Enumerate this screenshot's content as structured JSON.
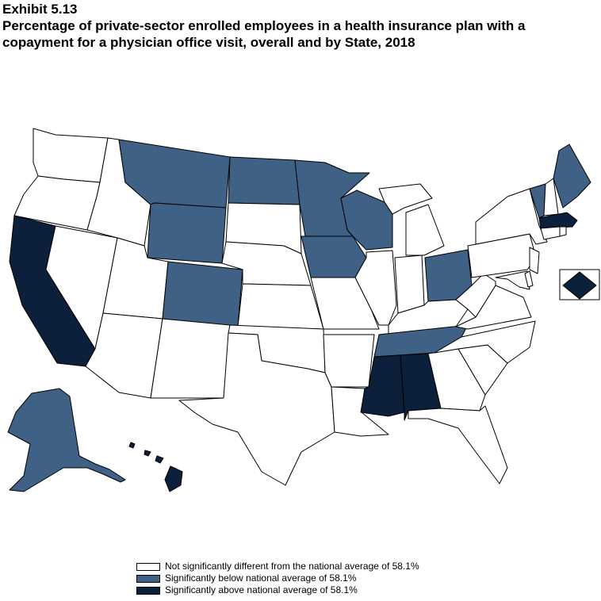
{
  "header": {
    "exhibit": "Exhibit 5.13",
    "title": "Percentage of private-sector enrolled employees in a health insurance plan with a copayment for a physician office visit, overall and by State, 2018"
  },
  "colors": {
    "not_significant": "#ffffff",
    "below": "#3f6185",
    "above": "#0c1f3b",
    "border": "#000000"
  },
  "categories": {
    "below": [
      "Alaska",
      "Montana",
      "North Dakota",
      "Minnesota",
      "Wisconsin",
      "Wyoming",
      "Colorado",
      "Iowa",
      "Ohio",
      "Tennessee",
      "Vermont",
      "Maine"
    ],
    "above": [
      "California",
      "Mississippi",
      "Alabama",
      "Massachusetts",
      "District of Columbia",
      "Hawaii"
    ]
  },
  "legend": {
    "items": [
      {
        "label": "Not significantly different from the national average of 58.1%",
        "color": "#ffffff"
      },
      {
        "label": "Significantly below national average of 58.1%",
        "color": "#3f6185"
      },
      {
        "label": "Significantly above national average of 58.1%",
        "color": "#0c1f3b"
      }
    ]
  }
}
